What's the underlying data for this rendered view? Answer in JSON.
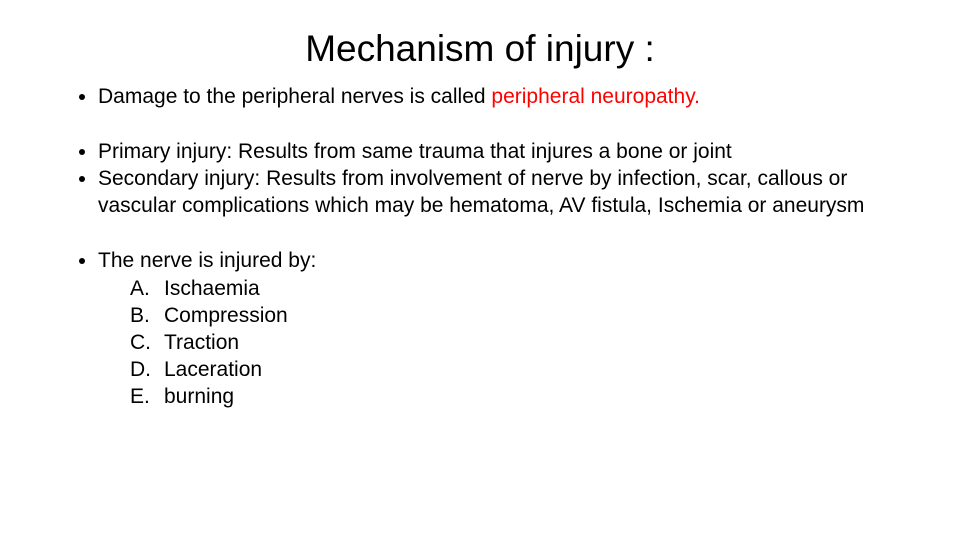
{
  "title": "Mechanism of injury :",
  "bullets": {
    "b1_prefix": "Damage to the peripheral nerves is called ",
    "b1_red": "peripheral neuropathy.",
    "b2": "Primary injury: Results from same trauma that injures a bone or joint",
    "b3": "Secondary injury: Results from involvement of nerve by infection, scar, callous or vascular complications which may be hematoma, AV fistula, Ischemia or aneurysm",
    "b4": "The nerve is injured by:"
  },
  "sub": {
    "a_letter": "A.",
    "a_text": "Ischaemia",
    "b_letter": "B.",
    "b_text": "Compression",
    "c_letter": "C.",
    "c_text": "Traction",
    "d_letter": "D.",
    "d_text": "Laceration",
    "e_letter": "E.",
    "e_text": "burning"
  },
  "colors": {
    "background": "#ffffff",
    "text": "#000000",
    "highlight": "#ff0000"
  },
  "typography": {
    "title_fontsize": 37,
    "body_fontsize": 21,
    "font_family": "Arial"
  }
}
